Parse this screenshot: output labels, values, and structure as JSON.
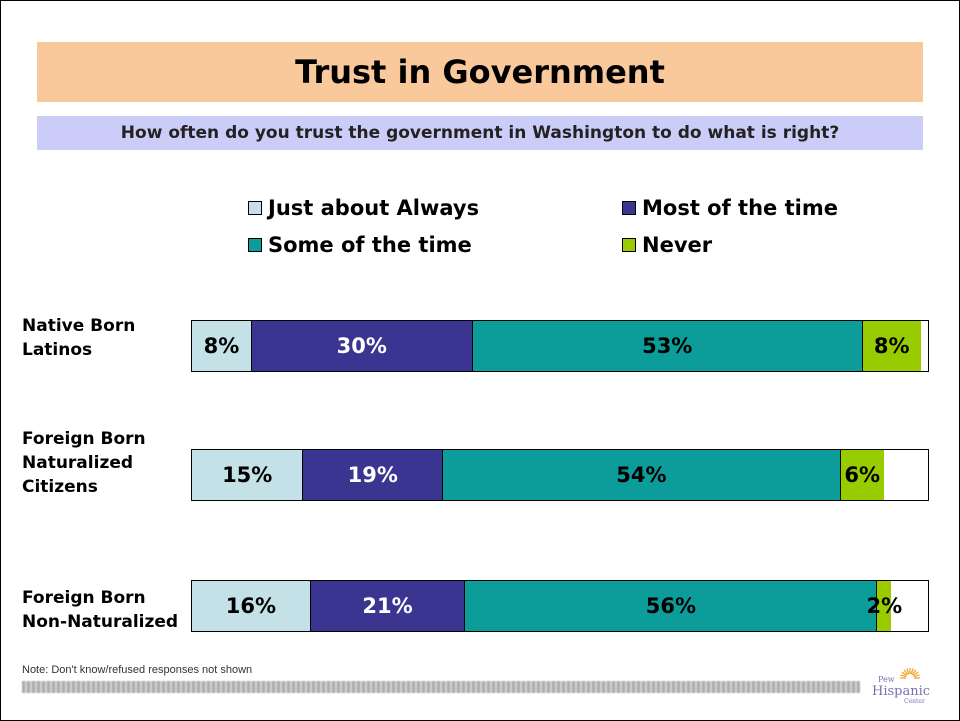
{
  "chart_data": {
    "type": "bar",
    "orientation": "horizontal",
    "stacked": true,
    "title": "Trust in Government",
    "subtitle": "How often do you trust the government in Washington to do what is right?",
    "categories": [
      "Native Born\nLatinos",
      "Foreign Born\nNaturalized\nCitizens",
      "Foreign Born\nNon-Naturalized"
    ],
    "series": [
      {
        "name": "Just about Always",
        "values": [
          8,
          15,
          16
        ],
        "labels": [
          "8%",
          "15%",
          "16%"
        ],
        "color": "#c3e1e6",
        "text_color": "#000000"
      },
      {
        "name": "Most of the time",
        "values": [
          30,
          19,
          21
        ],
        "labels": [
          "30%",
          "19%",
          "21%"
        ],
        "color": "#3a3591",
        "text_color": "#ffffff"
      },
      {
        "name": "Some of the time",
        "values": [
          53,
          54,
          56
        ],
        "labels": [
          "53%",
          "54%",
          "56%"
        ],
        "color": "#0c9c99",
        "text_color": "#000000"
      },
      {
        "name": "Never",
        "values": [
          8,
          6,
          2
        ],
        "labels": [
          "8%",
          "6%",
          "2%"
        ],
        "color": "#99cc00",
        "text_color": "#000000"
      }
    ],
    "xlim": [
      0,
      100
    ],
    "legend_position": "top",
    "grid": false
  },
  "note": "Note: Don't know/refused responses not shown",
  "logo": {
    "text_top": "Pew",
    "text_main": "Hispanic",
    "text_bottom": "Center",
    "sun_color": "#f0a020",
    "text_color": "#7a6fb0"
  }
}
